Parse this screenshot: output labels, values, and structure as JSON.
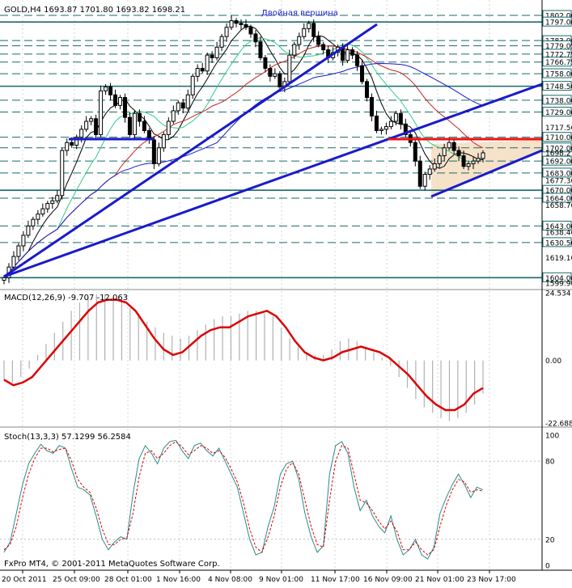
{
  "header": {
    "symbol": "GOLD,H4",
    "ohlc": "1693.87 1701.80 1693.82 1698.21",
    "annotation": "Двойная вершина"
  },
  "macd_panel": {
    "label": "MACD(12,26,9) -9.707 -12.063"
  },
  "stoch_panel": {
    "label": "Stoch(13,3,3) 57.1299 56.2584"
  },
  "copyright": "FxPro MT4, © 2001-2011 MetaQuotes Software Corp.",
  "colors": {
    "background": "#ffffff",
    "grid": "#1a6a6a",
    "candle": "#000000",
    "trendline": "#1a1acc",
    "resistance": "#ee1111",
    "channel_fill": "#f5dcc0",
    "macd_signal": "#dd0000",
    "macd_hist": "#b0b0b0",
    "stoch_main": "#2a8a8a",
    "stoch_signal": "#dd0000",
    "ma_fast": "#000000",
    "ma_green": "#33cc88",
    "ma_red": "#cc2222",
    "ma_slow": "#1a1acc"
  },
  "chart_data": [
    {
      "type": "candlestick",
      "symbol": "GOLD",
      "timeframe": "H4",
      "ylim": [
        1599.9,
        1802.0
      ],
      "price_labels": [
        "1802.00",
        "1797.00",
        "1783.00",
        "1779.05",
        "1772.75",
        "1766.75",
        "1758.00",
        "1748.50",
        "1738.00",
        "1729.00",
        "1717.50",
        "1710.00",
        "1702.00",
        "1698.21",
        "1692.00",
        "1683.00",
        "1677.30",
        "1670.00",
        "1664.00",
        "1658.70",
        "1643.00",
        "1638.40",
        "1630.50",
        "1619.10",
        "1604.00",
        "1599.90"
      ],
      "level_lines": [
        1802,
        1797,
        1783,
        1779,
        1772.75,
        1766.75,
        1758,
        1748.5,
        1738,
        1729,
        1710,
        1702,
        1692,
        1683,
        1670,
        1664,
        1643,
        1630.5,
        1604
      ],
      "x_labels": [
        "20 Oct 2011",
        "25 Oct 09:00",
        "28 Oct 01:00",
        "1 Nov 16:00",
        "4 Nov 08:00",
        "9 Nov 01:00",
        "11 Nov 17:00",
        "16 Nov 09:00",
        "21 Nov 01:00",
        "23 Nov 17:00"
      ],
      "closes": [
        1604,
        1612,
        1620,
        1628,
        1636,
        1643,
        1648,
        1652,
        1656,
        1660,
        1662,
        1666,
        1700,
        1706,
        1704,
        1710,
        1716,
        1722,
        1724,
        1712,
        1745,
        1748,
        1742,
        1734,
        1740,
        1725,
        1712,
        1728,
        1722,
        1715,
        1708,
        1690,
        1702,
        1712,
        1722,
        1730,
        1736,
        1732,
        1742,
        1756,
        1762,
        1760,
        1772,
        1770,
        1778,
        1786,
        1793,
        1798,
        1796,
        1795,
        1793,
        1788,
        1782,
        1770,
        1762,
        1756,
        1758,
        1748,
        1752,
        1772,
        1780,
        1786,
        1792,
        1796,
        1786,
        1780,
        1776,
        1770,
        1774,
        1778,
        1768,
        1776,
        1772,
        1764,
        1752,
        1740,
        1726,
        1715,
        1716,
        1718,
        1722,
        1728,
        1720,
        1712,
        1706,
        1692,
        1673,
        1682,
        1686,
        1690,
        1696,
        1702,
        1706,
        1700,
        1696,
        1688,
        1690,
        1692,
        1694,
        1698.21
      ],
      "moving_averages": [
        "ma-fast",
        "ma-green",
        "ma-red",
        "ma-slow"
      ],
      "annotations": [
        "Двойная вершина"
      ]
    },
    {
      "type": "line",
      "name": "MACD(12,26,9)",
      "values_label": "-9.707 -12.063",
      "ylim": [
        -22.688,
        24.534
      ],
      "y_labels": [
        "24.534",
        "0.00",
        "-22.688"
      ],
      "histogram": [
        -7,
        -8,
        -6,
        -3,
        2,
        6,
        10,
        14,
        18,
        21,
        23,
        24,
        24,
        23,
        22,
        19,
        17,
        14,
        12,
        10,
        9,
        8,
        9,
        11,
        13,
        15,
        16,
        16,
        17,
        18,
        18,
        17,
        16,
        12,
        8,
        5,
        3,
        2,
        2,
        4,
        7,
        8,
        7,
        5,
        3,
        1,
        -2,
        -6,
        -10,
        -14,
        -17,
        -19,
        -21,
        -22,
        -21,
        -19,
        -16,
        -12
      ],
      "signal": [
        -7,
        -9,
        -8,
        -6,
        -2,
        2,
        6,
        10,
        14,
        18,
        21,
        22,
        22,
        21,
        18,
        13,
        8,
        4,
        2,
        3,
        6,
        9,
        11,
        12,
        12,
        14,
        16,
        17,
        18,
        16,
        12,
        7,
        3,
        1,
        0,
        1,
        3,
        4,
        5,
        4,
        3,
        1,
        -2,
        -5,
        -9,
        -13,
        -16,
        -18,
        -18,
        -16,
        -12,
        -10
      ]
    },
    {
      "type": "line",
      "name": "Stoch(13,3,3)",
      "values_label": "57.1299 56.2584",
      "ylim": [
        0,
        100
      ],
      "y_labels": [
        "100",
        "80",
        "20",
        "0"
      ],
      "main": [
        10,
        18,
        40,
        62,
        78,
        86,
        93,
        88,
        86,
        92,
        90,
        74,
        60,
        58,
        54,
        38,
        20,
        12,
        18,
        22,
        20,
        55,
        82,
        92,
        86,
        78,
        90,
        95,
        96,
        88,
        82,
        92,
        94,
        88,
        84,
        90,
        80,
        70,
        60,
        40,
        20,
        8,
        10,
        30,
        45,
        70,
        78,
        80,
        66,
        40,
        22,
        10,
        15,
        70,
        92,
        95,
        86,
        60,
        42,
        50,
        38,
        30,
        25,
        38,
        20,
        8,
        12,
        20,
        8,
        5,
        14,
        40,
        52,
        62,
        70,
        62,
        52,
        60,
        58
      ],
      "signal": [
        12,
        16,
        30,
        52,
        70,
        82,
        90,
        90,
        87,
        89,
        90,
        80,
        66,
        60,
        56,
        44,
        28,
        16,
        16,
        20,
        21,
        40,
        68,
        86,
        88,
        82,
        86,
        92,
        95,
        91,
        85,
        88,
        92,
        90,
        86,
        88,
        83,
        74,
        64,
        48,
        28,
        14,
        10,
        22,
        38,
        60,
        74,
        79,
        70,
        50,
        30,
        16,
        14,
        50,
        80,
        92,
        90,
        70,
        50,
        48,
        42,
        34,
        28,
        34,
        26,
        12,
        12,
        18,
        12,
        8,
        12,
        30,
        46,
        58,
        66,
        64,
        56,
        58,
        57
      ]
    }
  ]
}
